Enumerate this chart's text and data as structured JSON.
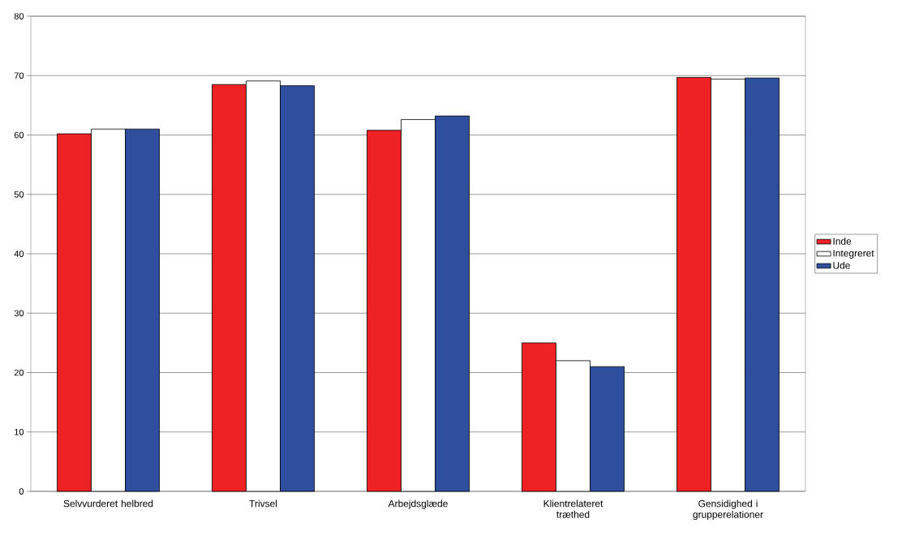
{
  "chart_data": {
    "type": "bar",
    "categories": [
      "Selvvurderet helbred",
      "Trivsel",
      "Arbejdsglæde",
      "Klientrelateret træthed",
      "Gensidighed i grupperelationer"
    ],
    "series": [
      {
        "name": "Inde",
        "color": "#ee2124",
        "values": [
          60.2,
          68.5,
          60.8,
          25.0,
          69.7
        ]
      },
      {
        "name": "Integreret",
        "color": "#ffffff",
        "values": [
          61.0,
          69.1,
          62.6,
          22.0,
          69.4
        ]
      },
      {
        "name": "Ude",
        "color": "#2e4e9e",
        "values": [
          61.0,
          68.3,
          63.2,
          21.0,
          69.6
        ]
      }
    ],
    "ylim": [
      0,
      80
    ],
    "yticks": [
      0,
      10,
      20,
      30,
      40,
      50,
      60,
      70,
      80
    ],
    "grid": "y",
    "legend": "right"
  }
}
